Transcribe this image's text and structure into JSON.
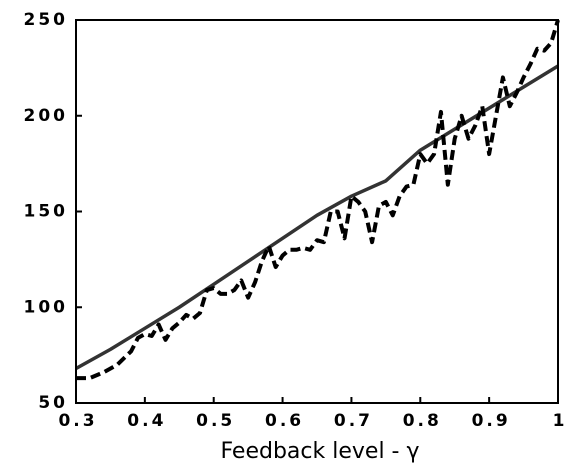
{
  "chart_data": {
    "type": "line",
    "x_label": "Feedback level - γ",
    "xlim": [
      0.3,
      1
    ],
    "xticks": [
      0.3,
      0.4,
      0.5,
      0.6,
      0.7,
      0.8,
      0.9,
      1
    ],
    "ylim": [
      50,
      250
    ],
    "yticks": [
      50,
      100,
      150,
      200,
      250
    ],
    "grid": false,
    "series": [
      {
        "color": "#333333",
        "style": "solid",
        "x": [
          0.3,
          0.35,
          0.4,
          0.45,
          0.5,
          0.55,
          0.6,
          0.65,
          0.7,
          0.75,
          0.8,
          0.85,
          0.9,
          0.95,
          1
        ],
        "values": [
          68,
          78,
          89,
          100,
          112,
          124,
          136,
          148,
          158,
          166,
          182,
          193,
          204,
          215,
          226
        ]
      },
      {
        "color": "#000000",
        "style": "dashed",
        "x": [
          0.3,
          0.32,
          0.34,
          0.36,
          0.38,
          0.39,
          0.4,
          0.41,
          0.42,
          0.43,
          0.44,
          0.45,
          0.46,
          0.47,
          0.48,
          0.49,
          0.5,
          0.51,
          0.52,
          0.53,
          0.54,
          0.55,
          0.56,
          0.57,
          0.58,
          0.59,
          0.6,
          0.61,
          0.62,
          0.63,
          0.64,
          0.65,
          0.66,
          0.67,
          0.68,
          0.69,
          0.7,
          0.71,
          0.72,
          0.73,
          0.74,
          0.75,
          0.76,
          0.77,
          0.78,
          0.79,
          0.8,
          0.81,
          0.82,
          0.83,
          0.84,
          0.85,
          0.86,
          0.87,
          0.88,
          0.89,
          0.9,
          0.91,
          0.92,
          0.93,
          0.94,
          0.95,
          0.96,
          0.97,
          0.98,
          0.99,
          1
        ],
        "values": [
          63,
          63,
          66,
          70,
          77,
          84,
          86,
          85,
          91,
          83,
          89,
          92,
          96,
          94,
          97,
          109,
          110,
          107,
          107,
          109,
          114,
          105,
          113,
          124,
          132,
          121,
          127,
          130,
          130,
          131,
          130,
          135,
          134,
          150,
          150,
          136,
          158,
          155,
          150,
          134,
          153,
          155,
          148,
          158,
          163,
          164,
          180,
          175,
          180,
          202,
          164,
          188,
          200,
          188,
          195,
          205,
          180,
          200,
          220,
          205,
          212,
          220,
          227,
          235,
          234,
          238,
          250
        ]
      }
    ]
  }
}
